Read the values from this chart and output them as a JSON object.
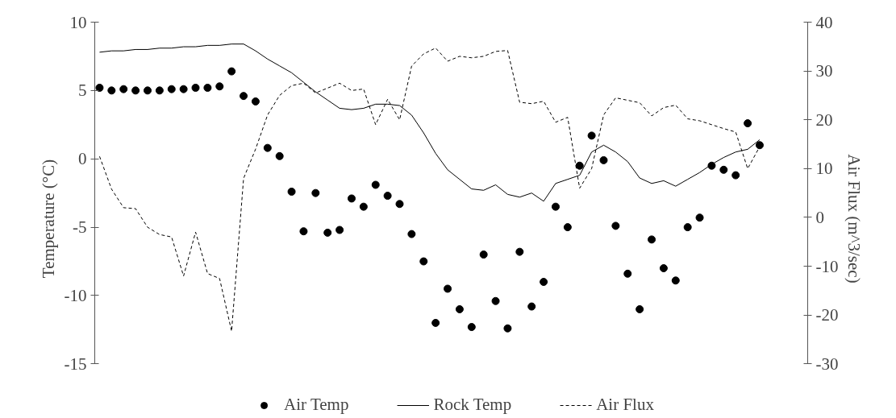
{
  "chart_data": {
    "type": "line",
    "ylabel": "Temperature (°C)",
    "y2label": "Air Flux (m^3/sec)",
    "categories": [
      null,
      null,
      null,
      null,
      null,
      null,
      null,
      null,
      null,
      null,
      null,
      null,
      null,
      null,
      null,
      null,
      null,
      null,
      null,
      null,
      null,
      null,
      null,
      null,
      null,
      null,
      null,
      null,
      null,
      null,
      null,
      null,
      null,
      null,
      null,
      null,
      null,
      null,
      null,
      null,
      null,
      null,
      null,
      null,
      null,
      null,
      null,
      null,
      null,
      null,
      null,
      null,
      null,
      null,
      null,
      null
    ],
    "ylim": [
      -15,
      10
    ],
    "yticks": [
      -15,
      -10,
      -5,
      0,
      5,
      10
    ],
    "y2lim": [
      -30,
      40
    ],
    "y2ticks": [
      -30,
      -20,
      -10,
      0,
      10,
      20,
      30,
      40
    ],
    "grid": false,
    "legend": "bottom",
    "series": [
      {
        "name": "Air Temp",
        "type": "scatter",
        "marker": "circle",
        "color": "#000000",
        "values": [
          5.2,
          5.0,
          5.1,
          5.0,
          5.0,
          5.0,
          5.1,
          5.1,
          5.2,
          5.2,
          5.3,
          6.4,
          4.6,
          4.2,
          0.8,
          0.2,
          -2.4,
          -5.3,
          -2.5,
          -5.4,
          -5.2,
          -2.9,
          -3.5,
          -1.9,
          -2.7,
          -3.3,
          -5.5,
          -7.5,
          -12.0,
          -9.5,
          -11.0,
          -12.3,
          -7.0,
          -10.4,
          -12.4,
          -6.8,
          -10.8,
          -9.0,
          -3.5,
          -5.0,
          -0.5,
          1.7,
          -0.1,
          -4.9,
          -8.4,
          -11.0,
          -5.9,
          -8.0,
          -8.9,
          -5.0,
          -4.3,
          -0.5,
          -0.8,
          -1.2,
          2.6,
          1.0
        ]
      },
      {
        "name": "Rock Temp",
        "line_style": "solid",
        "color": "#000000",
        "values": [
          7.8,
          7.9,
          7.9,
          8.0,
          8.0,
          8.1,
          8.1,
          8.2,
          8.2,
          8.3,
          8.3,
          8.4,
          8.4,
          7.9,
          7.3,
          6.8,
          6.3,
          5.6,
          4.9,
          4.3,
          3.7,
          3.6,
          3.7,
          4.0,
          4.0,
          3.9,
          3.2,
          1.9,
          0.4,
          -0.8,
          -1.5,
          -2.2,
          -2.3,
          -1.9,
          -2.6,
          -2.8,
          -2.5,
          -3.1,
          -1.8,
          -1.5,
          -1.2,
          0.5,
          1.0,
          0.5,
          -0.2,
          -1.4,
          -1.8,
          -1.6,
          -2.0,
          -1.5,
          -1.0,
          -0.4,
          0.1,
          0.5,
          0.7,
          1.4
        ]
      },
      {
        "name": "Air Flux",
        "type": "line",
        "line_style": "dashed",
        "axis": "y2",
        "color": "#000000",
        "values": [
          12.5,
          5.8,
          2.0,
          1.8,
          -2.0,
          -3.5,
          -4.0,
          -12.0,
          -3.0,
          -11.5,
          -12.5,
          -23.3,
          8.0,
          14,
          21,
          25,
          27,
          27.5,
          25.5,
          26.5,
          27.5,
          26,
          26.3,
          19,
          24.2,
          20,
          31,
          33.5,
          34.7,
          32,
          33,
          32.7,
          33,
          34,
          34.2,
          23.6,
          23.3,
          23.8,
          19.5,
          20.5,
          6,
          10,
          21,
          24.5,
          24,
          23.5,
          20.8,
          22.5,
          23,
          20.2,
          19.8,
          19,
          18.2,
          17.5,
          10,
          14.5
        ]
      }
    ]
  }
}
